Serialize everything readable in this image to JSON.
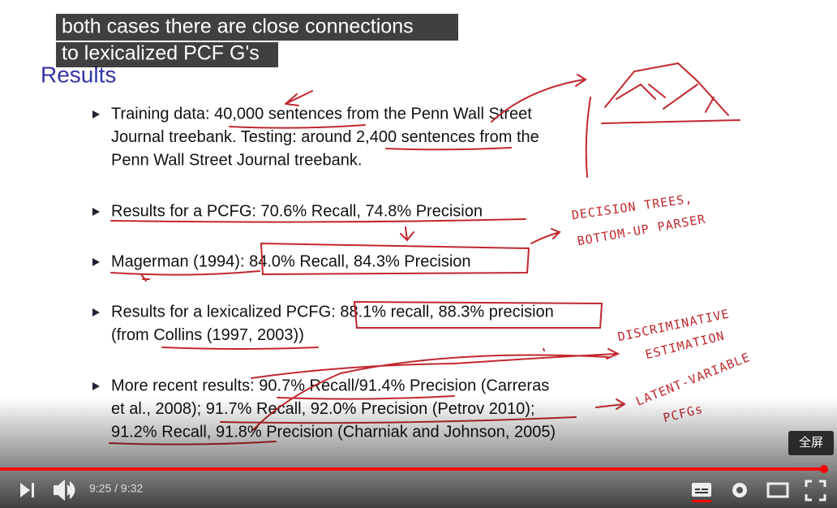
{
  "captions": [
    "both cases there are close connections",
    "to lexicalized PCF G's"
  ],
  "slide": {
    "title": "Results",
    "bullets": [
      [
        "Training data: 40,000 sentences from the Penn Wall Street",
        "Journal treebank. Testing: around 2,400 sentences from the",
        "Penn Wall Street Journal treebank."
      ],
      [
        "Results for a PCFG: 70.6% Recall, 74.8% Precision"
      ],
      [
        "Magerman (1994): 84.0% Recall, 84.3% Precision"
      ],
      [
        "Results for a lexicalized PCFG: 88.1% recall, 88.3% precision",
        "(from Collins (1997, 2003))"
      ],
      [
        "More recent results: 90.7% Recall/91.4% Precision (Carreras",
        "et al., 2008); 91.7% Recall, 92.0% Precision (Petrov 2010);",
        "91.2% Recall, 91.8% Precision (Charniak and Johnson, 2005)"
      ]
    ]
  },
  "annotations": [
    [
      "DECISION TREES,",
      "BOTTOM-UP PARSER"
    ],
    [
      "DISCRIMINATIVE",
      "ESTIMATION"
    ],
    [
      "LATENT-VARIABLE",
      "PCFGs"
    ]
  ],
  "player": {
    "time": "9:25 / 9:32",
    "tooltip": "全屏"
  }
}
